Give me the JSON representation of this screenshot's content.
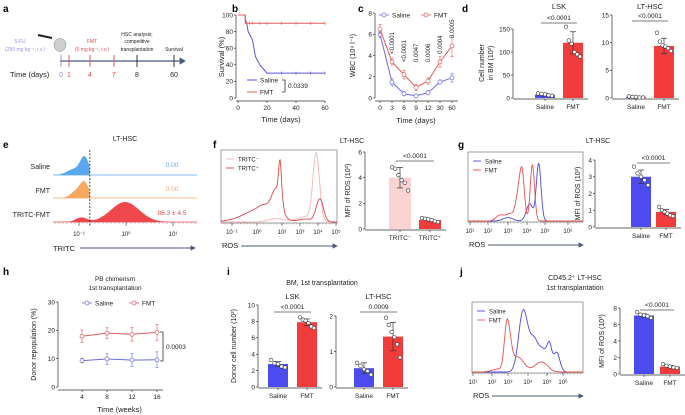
{
  "panels": {
    "a": "a",
    "b": "b",
    "c": "c",
    "d": "d",
    "e": "e",
    "f": "f",
    "g": "g",
    "h": "h",
    "i": "i",
    "j": "j"
  },
  "timeline": {
    "drug1": "5-FU",
    "drug1_dose": "(250 mg kg⁻¹, i.v.)",
    "drug2": "FMT",
    "drug2_dose": "(5 mg kg⁻¹, i.v.)",
    "event1_l1": "HSC analysis;",
    "event1_l2": "competitive",
    "event1_l3": "transplantation",
    "event2": "Survival",
    "axis_label": "Time (days)",
    "days": [
      "0",
      "1",
      "4",
      "7",
      "8",
      "60"
    ],
    "colors": {
      "drug1": "#9a8cf0",
      "drug2": "#e64a4a",
      "axis": "#4a5a7a"
    }
  },
  "chart_data": [
    {
      "id": "b",
      "type": "line",
      "ylabel": "Survival (%)",
      "xlabel": "Time (days)",
      "xlim": [
        0,
        60
      ],
      "ylim": [
        0,
        100
      ],
      "xticks": [
        0,
        20,
        40,
        60
      ],
      "yticks": [
        0,
        20,
        40,
        60,
        80,
        100
      ],
      "series": [
        {
          "name": "Saline",
          "color": "#5555e0",
          "steps": [
            [
              0,
              100
            ],
            [
              5,
              100
            ],
            [
              5,
              95
            ],
            [
              6,
              90
            ],
            [
              7,
              80
            ],
            [
              10,
              70
            ],
            [
              11,
              60
            ],
            [
              12,
              50
            ],
            [
              15,
              40
            ],
            [
              20,
              30
            ],
            [
              60,
              30
            ]
          ],
          "censored": [
            30,
            40,
            50,
            60
          ]
        },
        {
          "name": "FMT",
          "color": "#e85a5a",
          "steps": [
            [
              0,
              100
            ],
            [
              5,
              100
            ],
            [
              5,
              90
            ],
            [
              60,
              90
            ]
          ],
          "censored": [
            6,
            8,
            10,
            15,
            20,
            30,
            40,
            50,
            60
          ]
        }
      ],
      "pvalue": "0.0339"
    },
    {
      "id": "c",
      "type": "line",
      "ylabel": "WBC (10⁹ l⁻¹)",
      "xlabel": "Time (days)",
      "categories": [
        "0",
        "3",
        "6",
        "9",
        "12",
        "30",
        "60"
      ],
      "ylim": [
        0,
        8
      ],
      "yticks": [
        0,
        2,
        4,
        6,
        8
      ],
      "series": [
        {
          "name": "Saline",
          "color": "#6a6ae6",
          "values": [
            6.0,
            1.5,
            0.4,
            0.2,
            0.5,
            1.5,
            1.9
          ],
          "errors": [
            0.3,
            0.3,
            0.2,
            0.1,
            0.2,
            0.2,
            0.4
          ]
        },
        {
          "name": "FMT",
          "color": "#e05a5a",
          "values": [
            6.5,
            3.4,
            2.2,
            1.0,
            1.6,
            3.4,
            4.9
          ],
          "errors": [
            0.4,
            0.3,
            0.4,
            0.3,
            0.3,
            0.5,
            1.0
          ]
        }
      ],
      "pvalues": [
        "<0.0001",
        "<0.0001",
        "0.0047",
        "0.0006",
        "0.0004",
        "0.0005"
      ]
    },
    {
      "id": "d-lsk",
      "type": "bar",
      "title": "LSK",
      "ylabel": "Cell number",
      "ylabel2": "in BM (10²)",
      "categories": [
        "Saline",
        "FMT"
      ],
      "values": [
        7,
        120
      ],
      "errors": [
        3,
        24
      ],
      "points": [
        [
          10,
          9,
          8,
          6,
          5
        ],
        [
          155,
          125,
          118,
          100,
          95,
          90
        ]
      ],
      "ylim": [
        0,
        150
      ],
      "yticks": [
        0,
        50,
        100,
        150
      ],
      "colors": [
        "#4b4bf0",
        "#f23c3c"
      ],
      "pvalue": "<0.0001"
    },
    {
      "id": "d-lthsc",
      "type": "bar",
      "title": "LT-HSC",
      "categories": [
        "Saline",
        "FMT"
      ],
      "values": [
        0.2,
        9.4
      ],
      "errors": [
        0.1,
        1.4
      ],
      "points": [
        [
          0.3,
          0.2,
          0.2,
          0.1,
          0.1
        ],
        [
          11.8,
          10.2,
          9.5,
          9.3,
          9.0,
          8.5
        ]
      ],
      "ylim": [
        0,
        15
      ],
      "yticks": [
        0,
        5,
        10,
        15
      ],
      "colors": [
        "#4b4bf0",
        "#f23c3c"
      ],
      "pvalue": "<0.0001"
    },
    {
      "id": "e",
      "type": "histogram",
      "title": "LT-HSC",
      "xlabel": "TRITC",
      "xticks": [
        "10⁻¹",
        "10⁰",
        "10¹"
      ],
      "xtick_values": [
        -1,
        0,
        1
      ],
      "gate": -0.77,
      "series": [
        {
          "name": "Saline",
          "color": "#5aa7f0",
          "label": "0.00",
          "peaks": [
            [
              -0.88,
              0.09,
              1
            ],
            [
              -1.1,
              0.15,
              0.35
            ]
          ],
          "cut": -0.77
        },
        {
          "name": "FMT",
          "color": "#f5a860",
          "label": "0.00",
          "peaks": [
            [
              -0.88,
              0.09,
              1
            ],
            [
              -1.05,
              0.12,
              0.5
            ]
          ],
          "cut": -0.77
        },
        {
          "name": "TRITC-FMT",
          "color": "#f0474c",
          "label": "86.3 ± 4.5",
          "peaks": [
            [
              -0.95,
              0.12,
              0.22
            ],
            [
              -0.02,
              0.3,
              1.0
            ]
          ]
        }
      ]
    },
    {
      "id": "f-hist",
      "type": "histogram",
      "xlabel": "ROS",
      "xticks": [
        "10⁻¹",
        "10⁰",
        "10²",
        "10³",
        "10⁴",
        "10⁵"
      ],
      "xtick_values": [
        -1,
        0,
        2,
        3,
        4,
        5
      ],
      "series": [
        {
          "name": "TRITC⁻",
          "color": "#f4b4b4",
          "peaks": [
            [
              3.9,
              0.18,
              1.0
            ],
            [
              3.4,
              0.5,
              0.08
            ],
            [
              1.5,
              0.6,
              0.05
            ]
          ]
        },
        {
          "name": "TRITC⁺",
          "color": "#e0474c",
          "peaks": [
            [
              1.85,
              0.12,
              0.7
            ],
            [
              1.55,
              0.35,
              0.45
            ],
            [
              0.5,
              0.8,
              0.3
            ],
            [
              4.1,
              0.2,
              0.4
            ],
            [
              3.3,
              0.4,
              0.05
            ]
          ]
        }
      ]
    },
    {
      "id": "f-bar",
      "type": "bar",
      "title": "LT-HSC",
      "ylabel": "MFI of ROS (10³)",
      "categories": [
        "TRITC⁻",
        "TRITC⁺"
      ],
      "values": [
        4.0,
        0.7
      ],
      "errors": [
        0.8,
        0.1
      ],
      "points": [
        [
          4.8,
          4.7,
          4.2,
          3.8,
          3.6,
          3.0
        ],
        [
          0.85,
          0.8,
          0.75,
          0.7,
          0.6,
          0.55
        ]
      ],
      "ylim": [
        0,
        6
      ],
      "yticks": [
        0,
        2,
        4,
        6
      ],
      "colors": [
        "#f9d2d2",
        "#f23c3c"
      ],
      "pvalue": "<0.0001"
    },
    {
      "id": "g-hist",
      "type": "histogram",
      "xlabel": "ROS",
      "xticks": [
        "10¹",
        "10²",
        "10³",
        "10⁴",
        "10⁵",
        "10⁶"
      ],
      "xtick_values": [
        1,
        2,
        3,
        4,
        5,
        6
      ],
      "series": [
        {
          "name": "Saline",
          "color": "#4a4ae0",
          "peaks": [
            [
              4.65,
              0.13,
              1.0
            ],
            [
              4.15,
              0.18,
              0.3
            ],
            [
              3.0,
              0.25,
              0.06
            ]
          ]
        },
        {
          "name": "FMT",
          "color": "#e85050",
          "peaks": [
            [
              4.3,
              0.12,
              0.95
            ],
            [
              3.75,
              0.12,
              0.7
            ],
            [
              3.55,
              0.15,
              0.45
            ],
            [
              2.6,
              0.2,
              0.1
            ],
            [
              3.1,
              0.2,
              0.12
            ]
          ]
        }
      ]
    },
    {
      "id": "g-bar",
      "type": "bar",
      "title": "LT-HSC",
      "ylabel": "MFI of ROS (10³)",
      "categories": [
        "Saline",
        "FMT"
      ],
      "values": [
        3.0,
        0.9
      ],
      "errors": [
        0.4,
        0.15
      ],
      "points": [
        [
          3.6,
          3.2,
          3.0,
          2.8,
          2.5
        ],
        [
          1.2,
          1.0,
          0.9,
          0.8,
          0.7,
          0.65
        ]
      ],
      "ylim": [
        0,
        4
      ],
      "yticks": [
        0,
        1,
        2,
        3,
        4
      ],
      "colors": [
        "#4b4bf0",
        "#f23c3c"
      ],
      "pvalue": "<0.0001"
    },
    {
      "id": "h",
      "type": "line",
      "title": "PB chimerism",
      "subtitle": "1st transplantation",
      "ylabel": "Donor repopulation (%)",
      "xlabel": "Time (weeks)",
      "categories": [
        "4",
        "8",
        "12",
        "16"
      ],
      "ylim": [
        0,
        30
      ],
      "yticks": [
        0,
        10,
        20,
        30
      ],
      "series": [
        {
          "name": "Saline",
          "color": "#6a6ae6",
          "values": [
            9.3,
            9.9,
            9.5,
            9.6
          ],
          "errors": [
            0.8,
            1.9,
            2.3,
            2.8
          ]
        },
        {
          "name": "FMT",
          "color": "#e05a5a",
          "values": [
            17.9,
            19.0,
            18.6,
            19.3
          ],
          "errors": [
            2.2,
            1.9,
            2.4,
            2.8
          ]
        }
      ],
      "pvalue": "0.0003"
    },
    {
      "id": "i-lsk",
      "type": "bar",
      "group_title": "BM, 1st transplantation",
      "title": "LSK",
      "ylabel": "Donor cell number (10²)",
      "categories": [
        "Saline",
        "FMT"
      ],
      "values": [
        2.8,
        7.9
      ],
      "errors": [
        0.3,
        0.4
      ],
      "points": [
        [
          3.3,
          2.9,
          2.8,
          2.5,
          2.4
        ],
        [
          8.5,
          8.2,
          8.1,
          7.8,
          7.4,
          7.2
        ]
      ],
      "ylim": [
        0,
        10
      ],
      "yticks": [
        0,
        2,
        4,
        6,
        8,
        10
      ],
      "colors": [
        "#4b4bf0",
        "#f23c3c"
      ],
      "pvalue": "<0.0001"
    },
    {
      "id": "i-lthsc",
      "type": "bar",
      "title": "LT-HSC",
      "categories": [
        "Saline",
        "FMT"
      ],
      "values": [
        0.53,
        1.42
      ],
      "errors": [
        0.15,
        0.4
      ],
      "points": [
        [
          0.68,
          0.6,
          0.5,
          0.45,
          0.35
        ],
        [
          1.95,
          1.75,
          1.55,
          1.4,
          1.2,
          0.83
        ]
      ],
      "ylim": [
        0,
        2
      ],
      "yticks": [
        0,
        1,
        2
      ],
      "colors": [
        "#4b4bf0",
        "#f23c3c"
      ],
      "pvalue": "0.0009"
    },
    {
      "id": "j-hist",
      "type": "histogram",
      "title": "CD45.2⁺ LT-HSC",
      "subtitle": "1st transplantation",
      "xlabel": "ROS",
      "xticks": [
        "10¹",
        "10²",
        "10³",
        "10⁴",
        "10⁵",
        "10⁶"
      ],
      "xtick_values": [
        1,
        2,
        3,
        4,
        5,
        6
      ],
      "series": [
        {
          "name": "Saline",
          "color": "#4a4ae0",
          "peaks": [
            [
              3.75,
              0.22,
              1.0
            ],
            [
              4.3,
              0.25,
              0.55
            ],
            [
              5.15,
              0.15,
              0.42
            ],
            [
              5.6,
              0.2,
              0.33
            ],
            [
              4.8,
              0.2,
              0.3
            ]
          ]
        },
        {
          "name": "FMT",
          "color": "#e85050",
          "peaks": [
            [
              2.95,
              0.17,
              0.85
            ],
            [
              3.5,
              0.3,
              0.25
            ],
            [
              4.7,
              0.35,
              0.17
            ],
            [
              2.3,
              0.3,
              0.05
            ]
          ]
        }
      ]
    },
    {
      "id": "j-bar",
      "type": "bar",
      "ylabel": "MFI of ROS (10³)",
      "categories": [
        "Saline",
        "FMT"
      ],
      "values": [
        7.1,
        0.9
      ],
      "errors": [
        0.2,
        0.15
      ],
      "points": [
        [
          7.5,
          7.2,
          7.1,
          7.0,
          6.8
        ],
        [
          1.2,
          1.0,
          0.9,
          0.8,
          0.75
        ]
      ],
      "ylim": [
        0,
        8
      ],
      "yticks": [
        0,
        2,
        4,
        6,
        8
      ],
      "colors": [
        "#4b4bf0",
        "#f23c3c"
      ],
      "pvalue": "<0.0001"
    }
  ]
}
